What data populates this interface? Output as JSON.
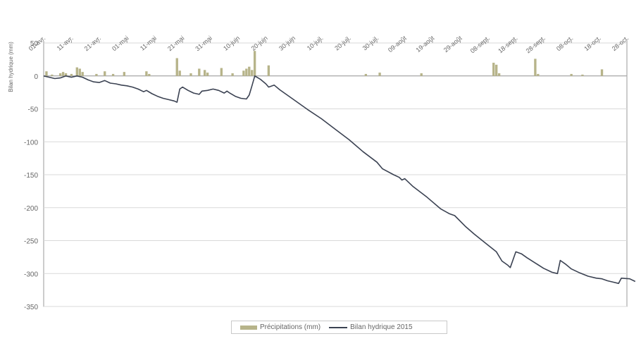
{
  "chart_data": {
    "type": "bar+line",
    "ylabel": "Bilan hydrique (mm)",
    "ylim": [
      -350,
      50
    ],
    "yticks": [
      50,
      0,
      -50,
      -100,
      -150,
      -200,
      -250,
      -300,
      -350
    ],
    "grid": true,
    "legend_position": "bottom",
    "x_tick_labels": [
      "01-avr.",
      "11-avr.",
      "21-avr.",
      "01-mai",
      "11-mai",
      "21-mai",
      "31-mai",
      "10-juin",
      "20-juin",
      "30-juin",
      "10-juil.",
      "20-juil.",
      "30-juil.",
      "09-août",
      "19-août",
      "29-août",
      "08-sept.",
      "18-sept.",
      "28-sept.",
      "08-oct.",
      "18-oct.",
      "28-oct."
    ],
    "x_range_days": [
      0,
      210
    ],
    "colors": {
      "precip": "#b7b48a",
      "balance": "#3b4252",
      "grid": "#d9d9d9",
      "axis": "#9a9a9a"
    },
    "series": [
      {
        "name": "Précipitations (mm)",
        "kind": "bar",
        "points": [
          [
            1,
            7
          ],
          [
            3,
            2
          ],
          [
            6,
            4
          ],
          [
            7,
            6
          ],
          [
            8,
            4
          ],
          [
            10,
            3
          ],
          [
            12,
            13
          ],
          [
            13,
            11
          ],
          [
            14,
            6
          ],
          [
            19,
            3
          ],
          [
            22,
            7
          ],
          [
            25,
            3
          ],
          [
            29,
            6
          ],
          [
            37,
            7
          ],
          [
            38,
            3
          ],
          [
            48,
            27
          ],
          [
            49,
            8
          ],
          [
            53,
            4
          ],
          [
            56,
            11
          ],
          [
            58,
            9
          ],
          [
            59,
            5
          ],
          [
            64,
            12
          ],
          [
            68,
            4
          ],
          [
            72,
            8
          ],
          [
            73,
            11
          ],
          [
            74,
            14
          ],
          [
            75,
            9
          ],
          [
            76,
            38
          ],
          [
            81,
            16
          ],
          [
            116,
            3
          ],
          [
            121,
            5
          ],
          [
            136,
            4
          ],
          [
            162,
            20
          ],
          [
            163,
            17
          ],
          [
            164,
            4
          ],
          [
            177,
            26
          ],
          [
            178,
            3
          ],
          [
            190,
            3
          ],
          [
            194,
            2
          ],
          [
            201,
            10
          ]
        ]
      },
      {
        "name": "Bilan hydrique 2015",
        "kind": "line",
        "points": [
          [
            0,
            0
          ],
          [
            2,
            -2
          ],
          [
            4,
            -4
          ],
          [
            6,
            -3
          ],
          [
            8,
            0
          ],
          [
            10,
            -2
          ],
          [
            12,
            0
          ],
          [
            14,
            -2
          ],
          [
            16,
            -6
          ],
          [
            18,
            -9
          ],
          [
            20,
            -10
          ],
          [
            22,
            -7
          ],
          [
            24,
            -11
          ],
          [
            26,
            -12
          ],
          [
            28,
            -14
          ],
          [
            30,
            -15
          ],
          [
            32,
            -17
          ],
          [
            34,
            -20
          ],
          [
            36,
            -24
          ],
          [
            37,
            -22
          ],
          [
            39,
            -27
          ],
          [
            41,
            -31
          ],
          [
            43,
            -34
          ],
          [
            45,
            -36
          ],
          [
            47,
            -38
          ],
          [
            48,
            -40
          ],
          [
            49,
            -20
          ],
          [
            50,
            -17
          ],
          [
            52,
            -22
          ],
          [
            54,
            -26
          ],
          [
            56,
            -28
          ],
          [
            57,
            -23
          ],
          [
            59,
            -22
          ],
          [
            61,
            -20
          ],
          [
            63,
            -22
          ],
          [
            65,
            -26
          ],
          [
            66,
            -23
          ],
          [
            67,
            -26
          ],
          [
            69,
            -31
          ],
          [
            71,
            -34
          ],
          [
            73,
            -35
          ],
          [
            74,
            -29
          ],
          [
            75,
            -15
          ],
          [
            76,
            0
          ],
          [
            78,
            -5
          ],
          [
            80,
            -12
          ],
          [
            81,
            -17
          ],
          [
            83,
            -14
          ],
          [
            85,
            -21
          ],
          [
            90,
            -36
          ],
          [
            95,
            -51
          ],
          [
            100,
            -65
          ],
          [
            105,
            -81
          ],
          [
            110,
            -97
          ],
          [
            115,
            -115
          ],
          [
            120,
            -131
          ],
          [
            122,
            -141
          ],
          [
            126,
            -150
          ],
          [
            128,
            -154
          ],
          [
            129,
            -158
          ],
          [
            130,
            -156
          ],
          [
            133,
            -168
          ],
          [
            138,
            -184
          ],
          [
            143,
            -202
          ],
          [
            146,
            -209
          ],
          [
            148,
            -212
          ],
          [
            152,
            -229
          ],
          [
            155,
            -240
          ],
          [
            160,
            -257
          ],
          [
            163,
            -267
          ],
          [
            165,
            -281
          ],
          [
            167,
            -287
          ],
          [
            168,
            -291
          ],
          [
            170,
            -267
          ],
          [
            172,
            -270
          ],
          [
            174,
            -276
          ],
          [
            177,
            -284
          ],
          [
            180,
            -292
          ],
          [
            183,
            -298
          ],
          [
            185,
            -300
          ],
          [
            186,
            -280
          ],
          [
            188,
            -286
          ],
          [
            190,
            -293
          ],
          [
            193,
            -299
          ],
          [
            196,
            -304
          ],
          [
            199,
            -307
          ],
          [
            201,
            -308
          ],
          [
            203,
            -311
          ],
          [
            205,
            -313
          ],
          [
            207,
            -315
          ],
          [
            208,
            -307
          ],
          [
            211,
            -308
          ],
          [
            213,
            -312
          ]
        ]
      }
    ]
  }
}
